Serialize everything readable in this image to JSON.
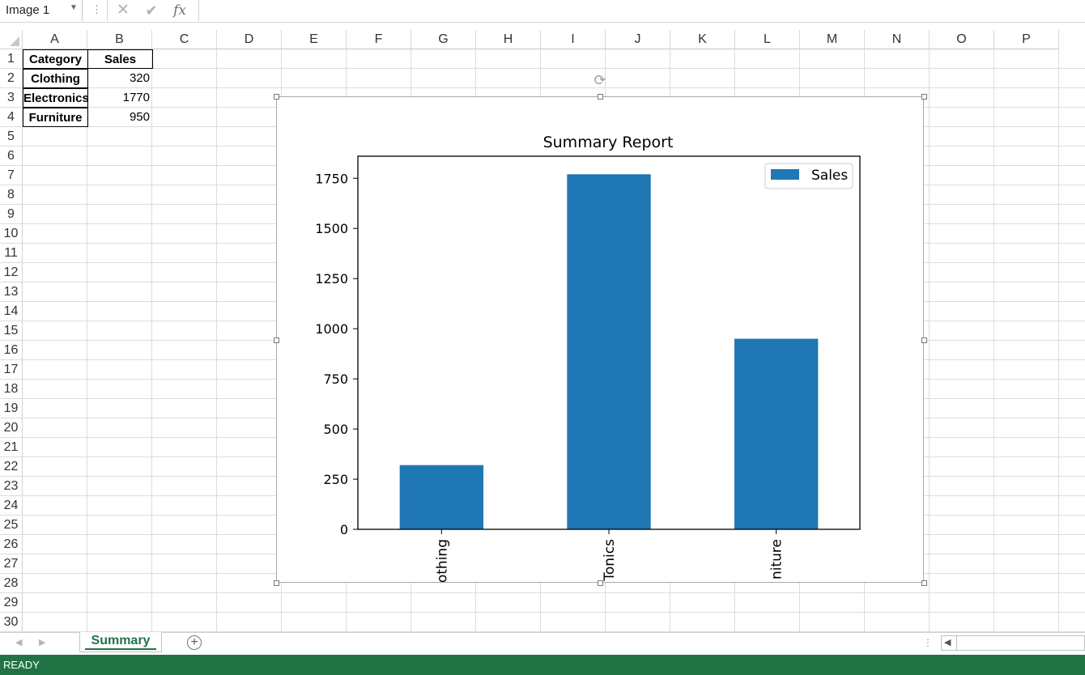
{
  "formula_bar": {
    "name_box": "Image 1",
    "formula": "",
    "icons": {
      "cancel": "cancel-icon",
      "enter": "enter-icon",
      "function": "fx-icon"
    }
  },
  "columns": [
    "A",
    "B",
    "C",
    "D",
    "E",
    "F",
    "G",
    "H",
    "I",
    "J",
    "K",
    "L",
    "M",
    "N",
    "O",
    "P"
  ],
  "rows": [
    "1",
    "2",
    "3",
    "4",
    "5",
    "6",
    "7",
    "8",
    "9",
    "10",
    "11",
    "12",
    "13",
    "14",
    "15",
    "16",
    "17",
    "18",
    "19",
    "20",
    "21",
    "22",
    "23",
    "24",
    "25",
    "26",
    "27",
    "28",
    "29",
    "30"
  ],
  "table": {
    "headers": [
      "Category",
      "Sales"
    ],
    "rows": [
      [
        "Clothing",
        "320"
      ],
      [
        "Electronics",
        "1770"
      ],
      [
        "Furniture",
        "950"
      ]
    ]
  },
  "chart_data": {
    "type": "bar",
    "title": "Summary Report",
    "categories": [
      "Clothing",
      "Electronics",
      "Furniture"
    ],
    "tick_labels_visible": [
      "othing",
      "Tonics",
      "niture"
    ],
    "series": [
      {
        "name": "Sales",
        "values": [
          320,
          1770,
          950
        ],
        "color": "#1f77b4"
      }
    ],
    "yticks": [
      "0",
      "250",
      "500",
      "750",
      "1000",
      "1250",
      "1500",
      "1750"
    ],
    "ylim": [
      0,
      1860
    ],
    "xlabel": "",
    "ylabel": "",
    "legend": "top-right",
    "grid": false
  },
  "sheet_tabs": [
    {
      "label": "Summary",
      "active": true
    }
  ],
  "status": {
    "text": "READY"
  },
  "colors": {
    "accent": "#217346",
    "bar": "#1f77b4"
  }
}
